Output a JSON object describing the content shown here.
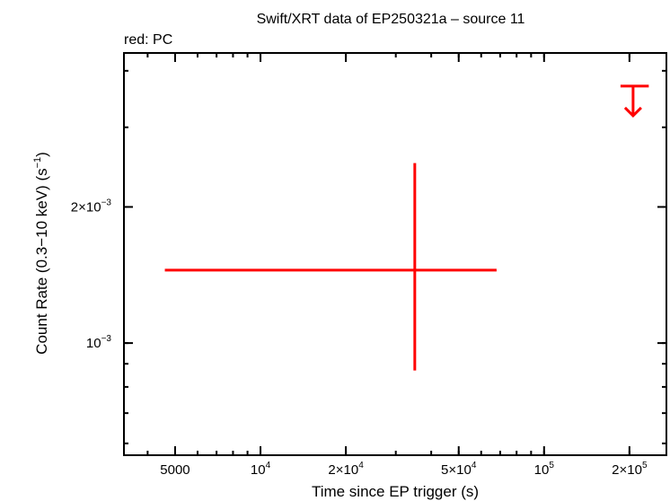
{
  "chart_data": {
    "type": "scatter",
    "title": "Swift/XRT data of EP250321a – source 11",
    "subtitle": "red: PC",
    "xlabel": "Time since EP trigger (s)",
    "ylabel": {
      "main": "Count Rate (0.3−10 keV) (s",
      "sup": "−1",
      "close": ")"
    },
    "x_scale": "log",
    "y_scale": "log",
    "xlim": [
      3300,
      270000
    ],
    "ylim": [
      0.000565,
      0.00438
    ],
    "grid": false,
    "x_ticks": [
      {
        "value": 5000,
        "base": "5000",
        "exp": ""
      },
      {
        "value": 10000,
        "base": "10",
        "exp": "4"
      },
      {
        "value": 20000,
        "base": "2×10",
        "exp": "4"
      },
      {
        "value": 50000,
        "base": "5×10",
        "exp": "4"
      },
      {
        "value": 100000,
        "base": "10",
        "exp": "5"
      },
      {
        "value": 200000,
        "base": "2×10",
        "exp": "5"
      }
    ],
    "y_ticks": [
      {
        "value": 0.001,
        "base": "10",
        "exp": "−3"
      },
      {
        "value": 0.002,
        "base": "2×10",
        "exp": "−3"
      }
    ],
    "series": [
      {
        "color": "#ff0000",
        "points": [
          {
            "x": 35000,
            "x_low": 4600,
            "x_high": 68000,
            "y": 0.00145,
            "y_low": 0.00087,
            "y_high": 0.0025
          }
        ],
        "upper_limits": [
          {
            "x": 206000,
            "x_low": 186000,
            "x_high": 234000,
            "y": 0.0037
          }
        ]
      }
    ]
  }
}
